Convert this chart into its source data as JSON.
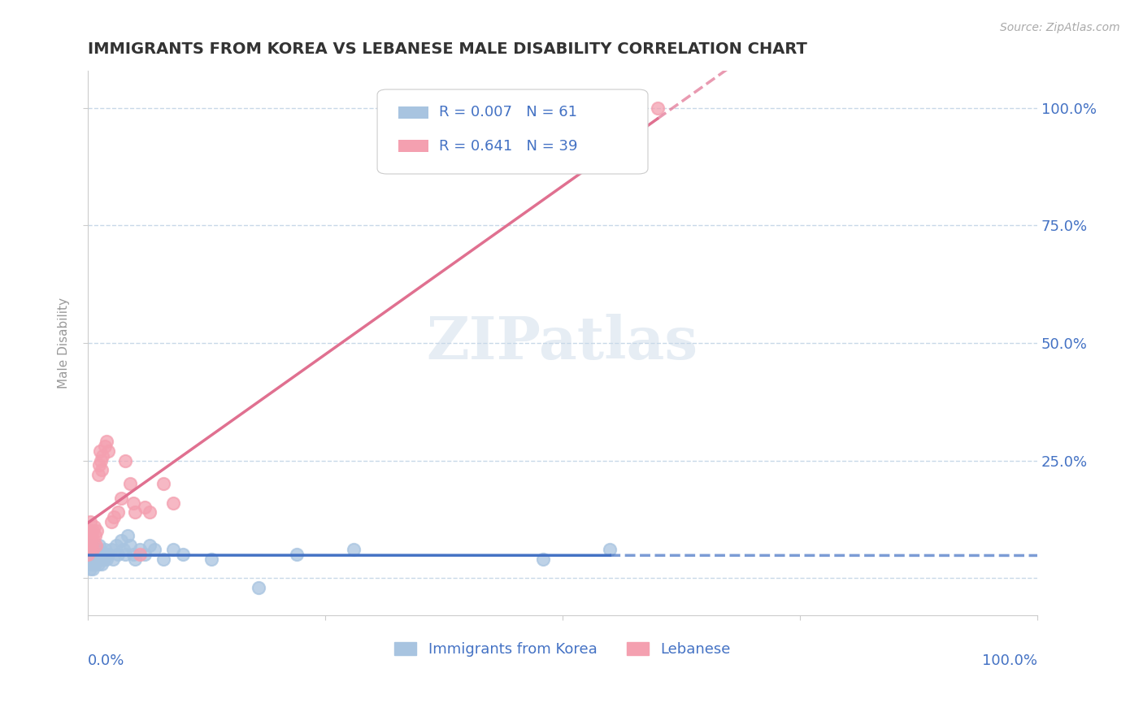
{
  "title": "IMMIGRANTS FROM KOREA VS LEBANESE MALE DISABILITY CORRELATION CHART",
  "source": "Source: ZipAtlas.com",
  "ylabel": "Male Disability",
  "legend_korea": "Immigrants from Korea",
  "legend_lebanese": "Lebanese",
  "korea_R": "0.007",
  "korea_N": "61",
  "lebanese_R": "0.641",
  "lebanese_N": "39",
  "korea_color": "#a8c4e0",
  "lebanese_color": "#f4a0b0",
  "korea_line_color": "#4472c4",
  "lebanese_line_color": "#e07090",
  "title_color": "#333333",
  "axis_label_color": "#4472c4",
  "background_color": "#ffffff",
  "grid_color": "#c8d8e8",
  "y_ticks": [
    0.0,
    0.25,
    0.5,
    0.75,
    1.0
  ],
  "y_tick_labels": [
    "",
    "25.0%",
    "50.0%",
    "75.0%",
    "100.0%"
  ],
  "xlim": [
    0.0,
    1.0
  ],
  "ylim": [
    -0.08,
    1.08
  ],
  "korea_x": [
    0.0,
    0.001,
    0.001,
    0.002,
    0.002,
    0.002,
    0.003,
    0.003,
    0.003,
    0.003,
    0.004,
    0.004,
    0.004,
    0.005,
    0.005,
    0.005,
    0.006,
    0.006,
    0.007,
    0.007,
    0.008,
    0.008,
    0.009,
    0.01,
    0.011,
    0.011,
    0.012,
    0.012,
    0.013,
    0.014,
    0.015,
    0.016,
    0.017,
    0.018,
    0.019,
    0.02,
    0.022,
    0.025,
    0.027,
    0.03,
    0.032,
    0.035,
    0.038,
    0.04,
    0.042,
    0.045,
    0.048,
    0.05,
    0.055,
    0.06,
    0.065,
    0.07,
    0.08,
    0.09,
    0.1,
    0.13,
    0.18,
    0.22,
    0.28,
    0.48,
    0.55
  ],
  "korea_y": [
    0.05,
    0.04,
    0.06,
    0.03,
    0.05,
    0.07,
    0.02,
    0.04,
    0.05,
    0.06,
    0.03,
    0.04,
    0.06,
    0.02,
    0.04,
    0.06,
    0.03,
    0.05,
    0.04,
    0.06,
    0.03,
    0.05,
    0.04,
    0.05,
    0.03,
    0.06,
    0.04,
    0.07,
    0.05,
    0.04,
    0.03,
    0.05,
    0.04,
    0.06,
    0.05,
    0.04,
    0.05,
    0.06,
    0.04,
    0.07,
    0.05,
    0.08,
    0.06,
    0.05,
    0.09,
    0.07,
    0.05,
    0.04,
    0.06,
    0.05,
    0.07,
    0.06,
    0.04,
    0.06,
    0.05,
    0.04,
    -0.02,
    0.05,
    0.06,
    0.04,
    0.06
  ],
  "lebanese_x": [
    0.0,
    0.001,
    0.001,
    0.002,
    0.002,
    0.003,
    0.003,
    0.004,
    0.004,
    0.005,
    0.005,
    0.006,
    0.007,
    0.008,
    0.009,
    0.01,
    0.011,
    0.012,
    0.013,
    0.014,
    0.015,
    0.016,
    0.018,
    0.02,
    0.022,
    0.025,
    0.028,
    0.032,
    0.035,
    0.04,
    0.045,
    0.048,
    0.05,
    0.055,
    0.06,
    0.065,
    0.08,
    0.09,
    0.6
  ],
  "lebanese_y": [
    0.05,
    0.07,
    0.09,
    0.06,
    0.1,
    0.08,
    0.12,
    0.07,
    0.09,
    0.06,
    0.1,
    0.08,
    0.11,
    0.09,
    0.07,
    0.1,
    0.22,
    0.24,
    0.27,
    0.25,
    0.23,
    0.26,
    0.28,
    0.29,
    0.27,
    0.12,
    0.13,
    0.14,
    0.17,
    0.25,
    0.2,
    0.16,
    0.14,
    0.05,
    0.15,
    0.14,
    0.2,
    0.16,
    1.0
  ]
}
